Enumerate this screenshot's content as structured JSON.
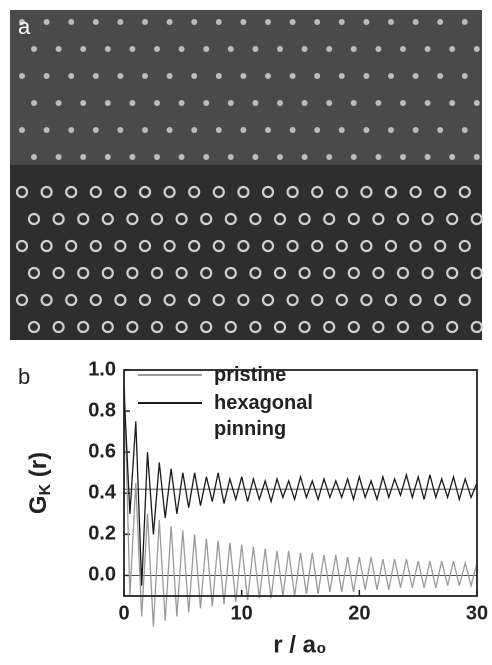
{
  "panel_labels": [
    "a",
    "b"
  ],
  "chart_data": {
    "type": "line",
    "x_label": "r / a₀",
    "y_label": [
      "G",
      "K",
      " (r)"
    ],
    "x": [
      0,
      0.5,
      1,
      1.5,
      2,
      2.5,
      3,
      3.5,
      4,
      4.5,
      5,
      5.5,
      6,
      6.5,
      7,
      7.5,
      8,
      8.5,
      9,
      9.5,
      10,
      10.5,
      11,
      11.5,
      12,
      12.5,
      13,
      13.5,
      14,
      14.5,
      15,
      15.5,
      16,
      16.5,
      17,
      17.5,
      18,
      18.5,
      19,
      19.5,
      20,
      20.5,
      21,
      21.5,
      22,
      22.5,
      23,
      23.5,
      24,
      24.5,
      25,
      25.5,
      26,
      26.5,
      27,
      27.5,
      28,
      28.5,
      29,
      29.5,
      30
    ],
    "series": [
      {
        "name": "pristine",
        "color": "#9a9a9a",
        "values": [
          1.0,
          -0.1,
          0.45,
          -0.2,
          0.3,
          -0.25,
          0.27,
          -0.22,
          0.24,
          -0.2,
          0.22,
          -0.18,
          0.2,
          -0.16,
          0.18,
          -0.15,
          0.17,
          -0.14,
          0.16,
          -0.13,
          0.15,
          -0.12,
          0.14,
          -0.11,
          0.13,
          -0.11,
          0.12,
          -0.1,
          0.12,
          -0.1,
          0.11,
          -0.09,
          0.11,
          -0.09,
          0.1,
          -0.08,
          0.1,
          -0.08,
          0.09,
          -0.08,
          0.09,
          -0.07,
          0.09,
          -0.07,
          0.08,
          -0.07,
          0.08,
          -0.06,
          0.08,
          -0.06,
          0.07,
          -0.06,
          0.07,
          -0.06,
          0.07,
          -0.05,
          0.07,
          -0.05,
          0.06,
          -0.05,
          0.06
        ]
      },
      {
        "name": "hexagonal pinning",
        "color": "#1a1a1a",
        "values": [
          0.9,
          0.3,
          0.75,
          -0.05,
          0.6,
          0.2,
          0.55,
          0.28,
          0.52,
          0.3,
          0.5,
          0.33,
          0.5,
          0.34,
          0.48,
          0.36,
          0.5,
          0.35,
          0.47,
          0.37,
          0.48,
          0.36,
          0.47,
          0.37,
          0.46,
          0.36,
          0.47,
          0.38,
          0.46,
          0.37,
          0.48,
          0.38,
          0.46,
          0.37,
          0.47,
          0.38,
          0.46,
          0.38,
          0.47,
          0.37,
          0.48,
          0.38,
          0.46,
          0.37,
          0.48,
          0.38,
          0.47,
          0.39,
          0.49,
          0.38,
          0.48,
          0.37,
          0.49,
          0.38,
          0.47,
          0.38,
          0.48,
          0.37,
          0.47,
          0.38,
          0.45
        ]
      }
    ],
    "reference_lines": [
      0,
      0.42
    ],
    "xlim": [
      0,
      30
    ],
    "xticks": [
      0,
      10,
      20,
      30
    ],
    "ylim": [
      -0.1,
      1.0
    ],
    "yticks": [
      {
        "value": 0,
        "label": "0.0"
      },
      0.2,
      0.4,
      0.6,
      0.8,
      {
        "value": 1,
        "label": "1.0"
      }
    ]
  }
}
